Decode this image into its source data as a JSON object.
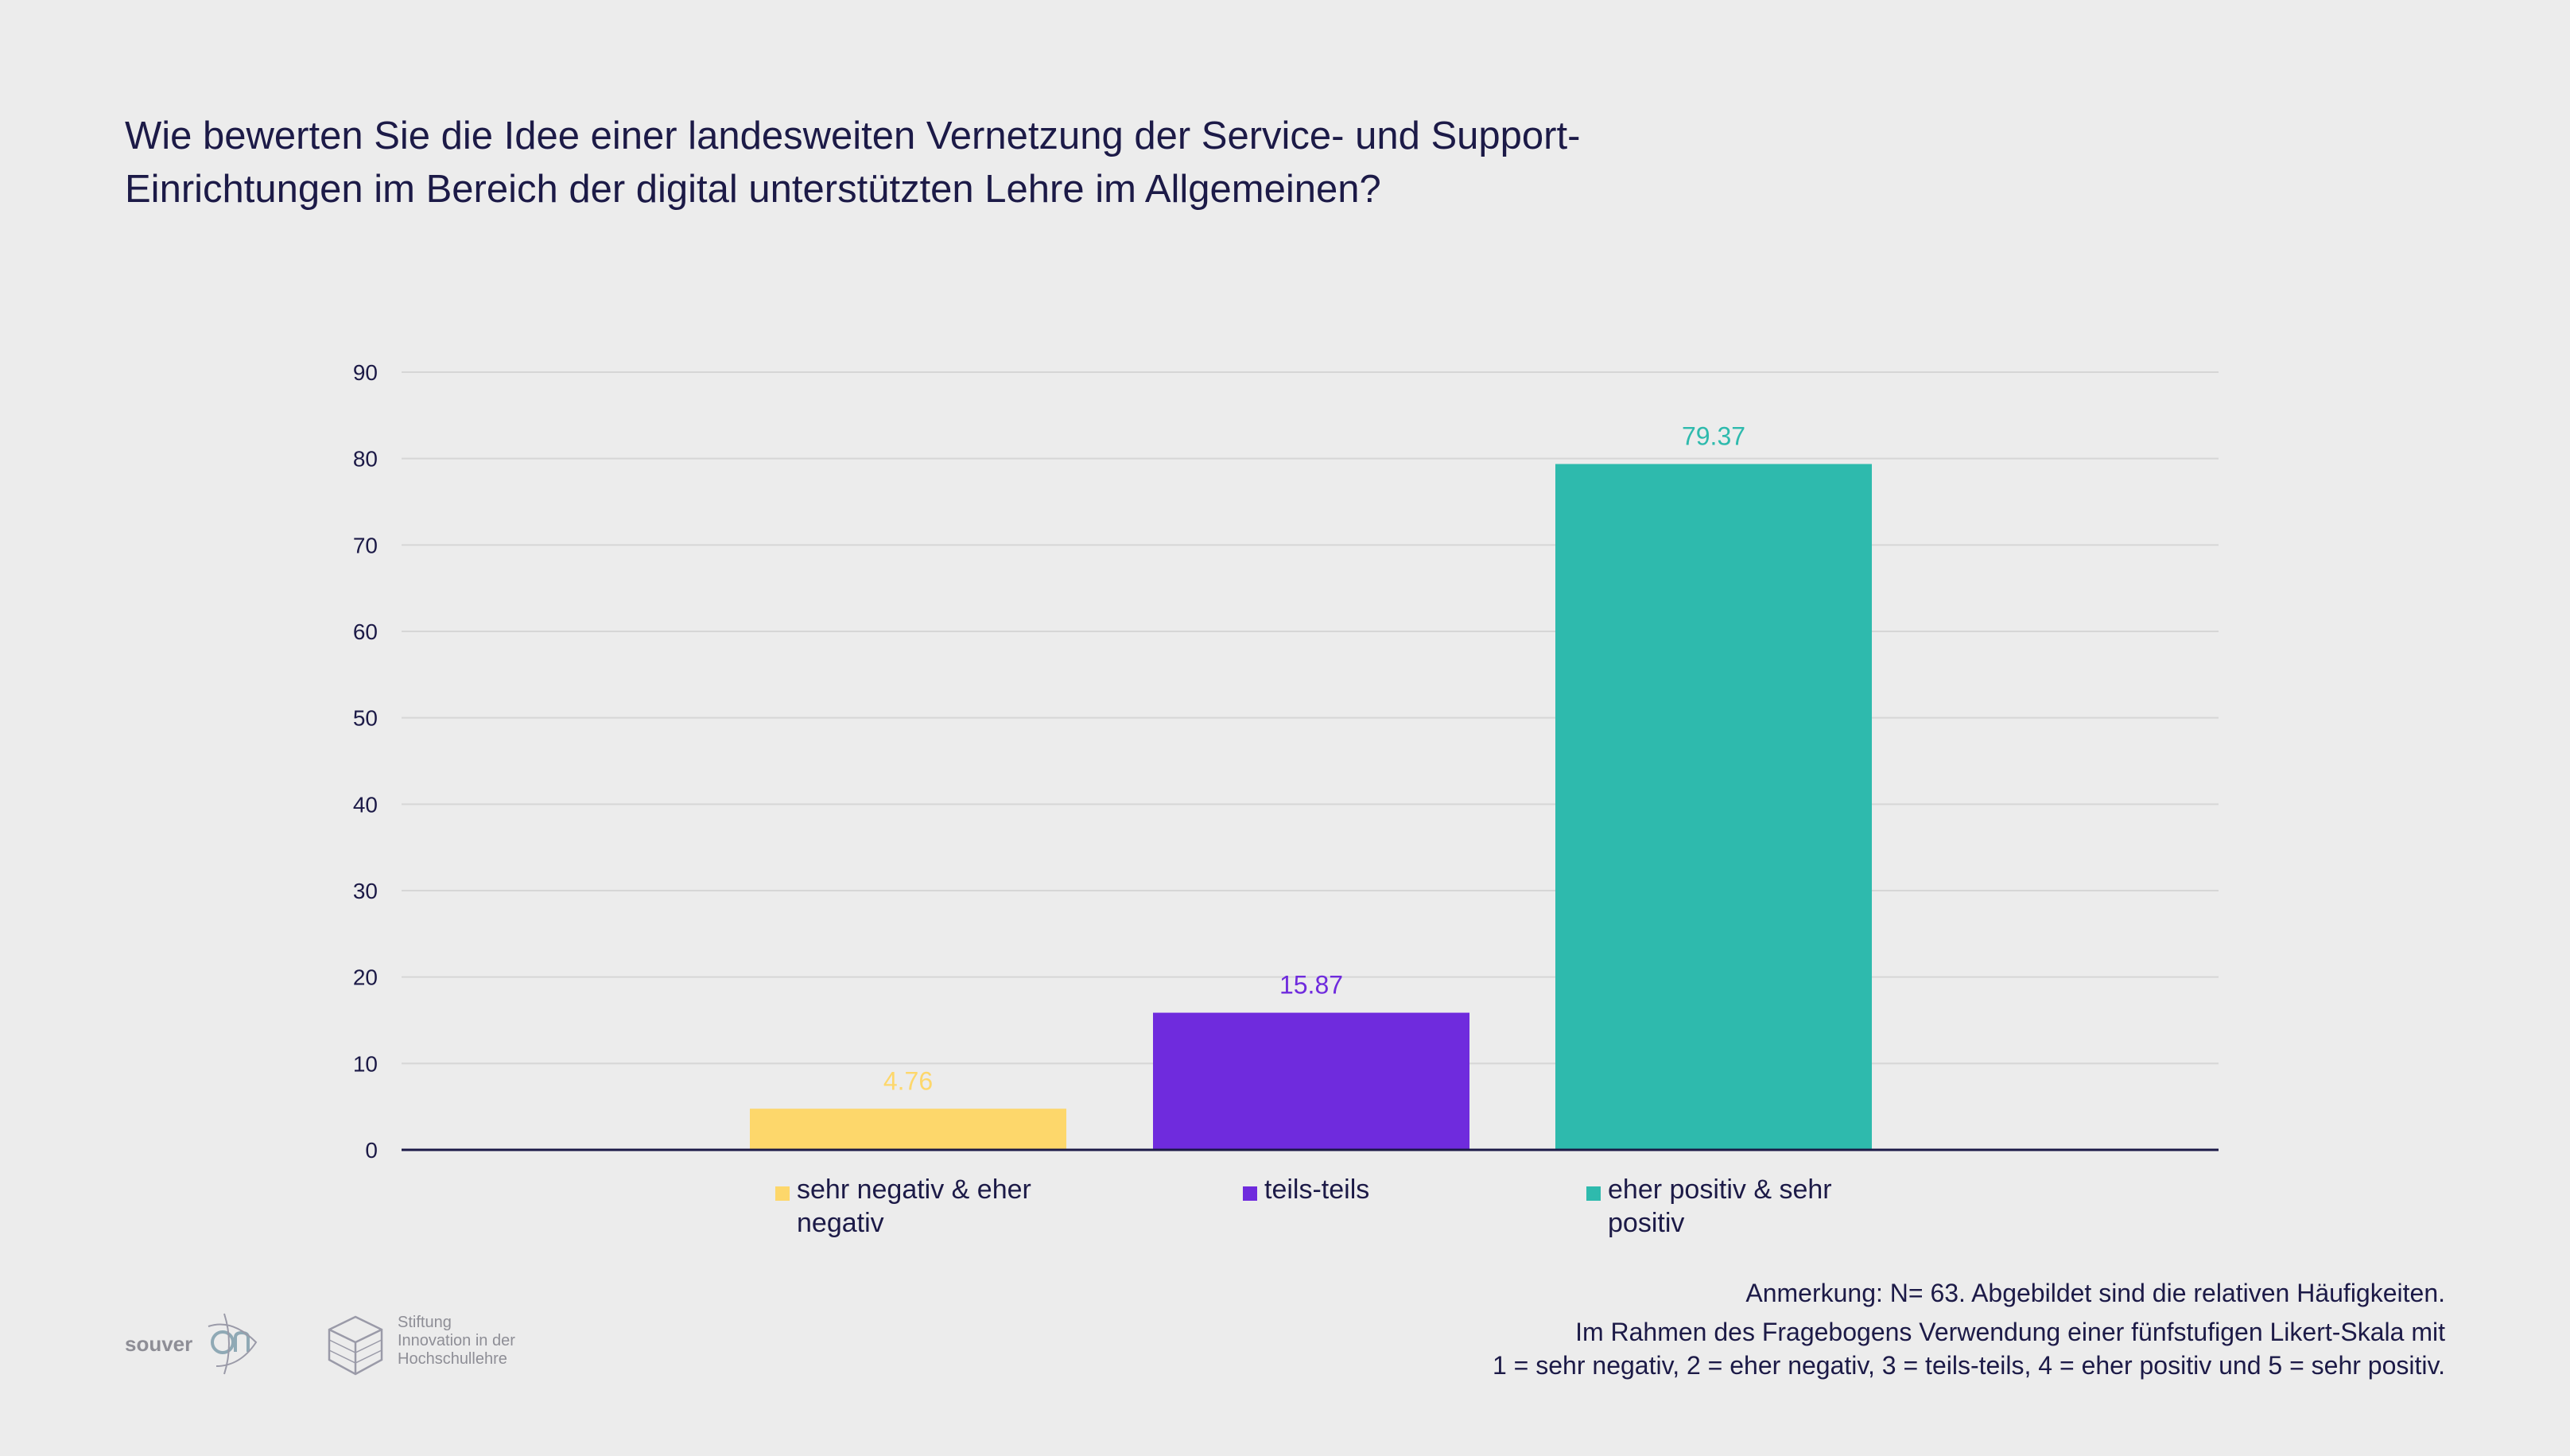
{
  "title": "Wie bewerten Sie die Idee einer landesweiten Vernetzung der Service- und Support-Einrichtungen im Bereich der digital unterstützten Lehre im Allgemeinen?",
  "colors": {
    "negative": "#fdd76b",
    "neutral": "#6f2bdd",
    "positive": "#2ebaad",
    "grid": "#d6d6d6",
    "axis": "#1c1a47"
  },
  "chart_data": {
    "type": "bar",
    "title": "Wie bewerten Sie die Idee einer landesweiten Vernetzung der Service- und Support-Einrichtungen im Bereich der digital unterstützten Lehre im Allgemeinen?",
    "categories": [
      "sehr negativ & eher negativ",
      "teils-teils",
      "eher positiv & sehr positiv"
    ],
    "values": [
      4.76,
      15.87,
      79.37
    ],
    "value_labels": [
      "4.76",
      "15.87",
      "79.37"
    ],
    "ylim": [
      0,
      90
    ],
    "yticks": [
      0,
      10,
      20,
      30,
      40,
      50,
      60,
      70,
      80,
      90
    ],
    "xlabel": "",
    "ylabel": "",
    "grid": true,
    "legend": "bottom"
  },
  "legend": {
    "items": [
      {
        "line1": "sehr negativ & eher",
        "line2": "negativ"
      },
      {
        "line1": "teils-teils",
        "line2": ""
      },
      {
        "line1": "eher positiv & sehr",
        "line2": "positiv"
      }
    ]
  },
  "notes": {
    "line1": "Anmerkung: N= 63. Abgebildet sind die relativen Häufigkeiten.",
    "line2": "Im Rahmen des Fragebogens Verwendung einer fünfstufigen Likert-Skala mit",
    "line3": "1 = sehr negativ, 2 = eher negativ, 3 = teils-teils, 4 = eher positiv und 5 = sehr positiv."
  },
  "logos": {
    "souveran": "souver",
    "stiftung_line1": "Stiftung",
    "stiftung_line2": "Innovation in der",
    "stiftung_line3": "Hochschullehre"
  }
}
